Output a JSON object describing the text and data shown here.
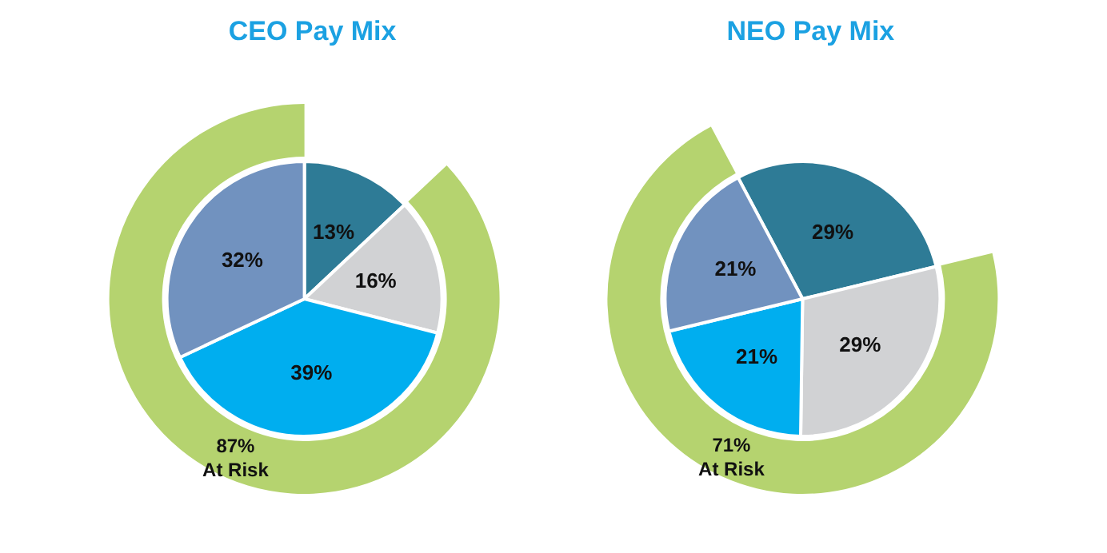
{
  "chart_data": [
    {
      "type": "pie",
      "title": "CEO Pay Mix",
      "categories": [
        null,
        null,
        null,
        null
      ],
      "values": [
        13,
        16,
        39,
        32
      ],
      "colors": [
        "#2e7b96",
        "#d1d2d4",
        "#00aeef",
        "#7192bf"
      ],
      "value_labels": [
        "13%",
        "16%",
        "39%",
        "32%"
      ]
    },
    {
      "type": "pie",
      "categories": [
        null
      ],
      "values": [
        87
      ],
      "colors": [
        "#b5d36f"
      ],
      "value_labels": [
        "87%\nAt Risk"
      ]
    },
    {
      "type": "pie",
      "title": "NEO Pay Mix",
      "categories": [
        null,
        null,
        null,
        null
      ],
      "values": [
        29,
        29,
        21,
        21
      ],
      "colors": [
        "#2e7b96",
        "#d1d2d4",
        "#00aeef",
        "#7192bf"
      ],
      "value_labels": [
        "29%",
        "29%",
        "21%",
        "21%"
      ]
    },
    {
      "type": "pie",
      "categories": [
        null
      ],
      "values": [
        71
      ],
      "colors": [
        "#b5d36f"
      ],
      "value_labels": [
        "71%\nAt Risk"
      ]
    }
  ]
}
